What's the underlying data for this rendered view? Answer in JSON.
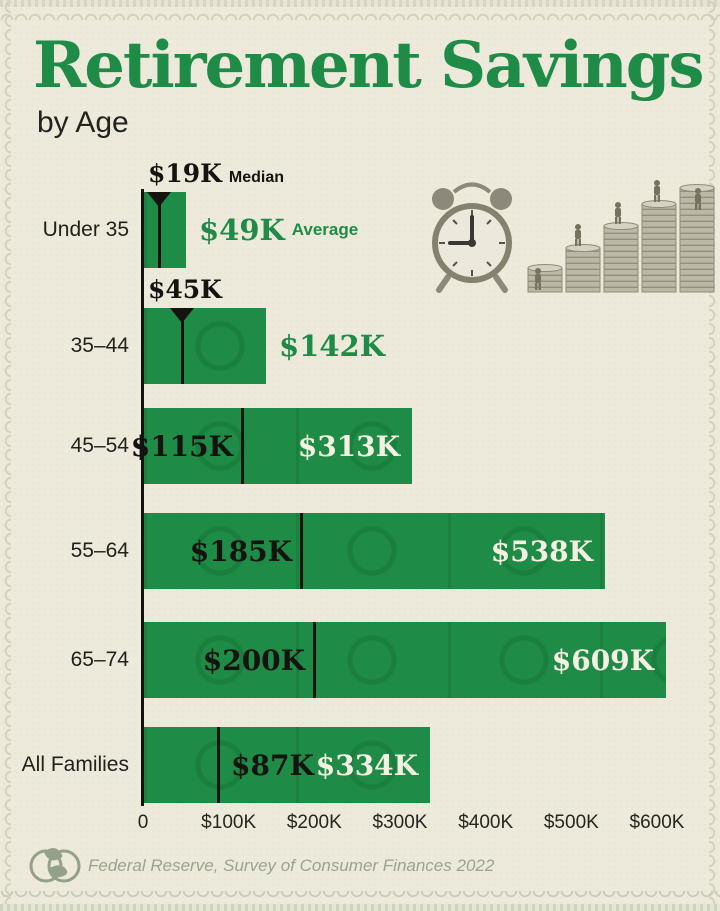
{
  "page": {
    "title": "Retirement Savings",
    "subtitle": "by Age",
    "source": "Federal Reserve, Survey of Consumer Finances 2022"
  },
  "colors": {
    "background": "#edeadb",
    "green": "#1e8c46",
    "ink": "#14130f",
    "bar_inner_label_light": "#f4f1e3",
    "footer_muted": "#9aa38e",
    "stitch": "#d4d1bb"
  },
  "legend": {
    "median": "Median",
    "average": "Average"
  },
  "chart_data": {
    "type": "bar",
    "orientation": "horizontal",
    "title": "Retirement Savings",
    "subtitle": "by Age",
    "xlabel": "",
    "ylabel": "",
    "gridlines": false,
    "categories": [
      "Under 35",
      "35–44",
      "45–54",
      "55–64",
      "65–74",
      "All Families"
    ],
    "series": [
      {
        "name": "Median",
        "values_k": [
          19,
          45,
          115,
          185,
          200,
          87
        ]
      },
      {
        "name": "Average",
        "values_k": [
          49,
          142,
          313,
          538,
          609,
          334
        ]
      }
    ],
    "rows": [
      {
        "category": "Under 35",
        "median_k": 19,
        "average_k": 49,
        "median_label": "$19K",
        "average_label": "$49K"
      },
      {
        "category": "35–44",
        "median_k": 45,
        "average_k": 142,
        "median_label": "$45K",
        "average_label": "$142K"
      },
      {
        "category": "45–54",
        "median_k": 115,
        "average_k": 313,
        "median_label": "$115K",
        "average_label": "$313K"
      },
      {
        "category": "55–64",
        "median_k": 185,
        "average_k": 538,
        "median_label": "$185K",
        "average_label": "$538K"
      },
      {
        "category": "65–74",
        "median_k": 200,
        "average_k": 609,
        "median_label": "$200K",
        "average_label": "$609K"
      },
      {
        "category": "All Families",
        "median_k": 87,
        "average_k": 334,
        "median_label": "$87K",
        "average_label": "$334K"
      }
    ],
    "x_axis": {
      "range_k": [
        0,
        660
      ],
      "ticks": [
        {
          "label": "0",
          "value_k": 0
        },
        {
          "label": "$100K",
          "value_k": 100
        },
        {
          "label": "$200K",
          "value_k": 200
        },
        {
          "label": "$300K",
          "value_k": 300
        },
        {
          "label": "$400K",
          "value_k": 400
        },
        {
          "label": "$500K",
          "value_k": 500
        },
        {
          "label": "$600K",
          "value_k": 600
        }
      ]
    },
    "source": "Federal Reserve, Survey of Consumer Finances 2022"
  },
  "illustration": {
    "description": "grayscale alarm clock beside five rising stacks of coins with tiny climbing figures"
  }
}
